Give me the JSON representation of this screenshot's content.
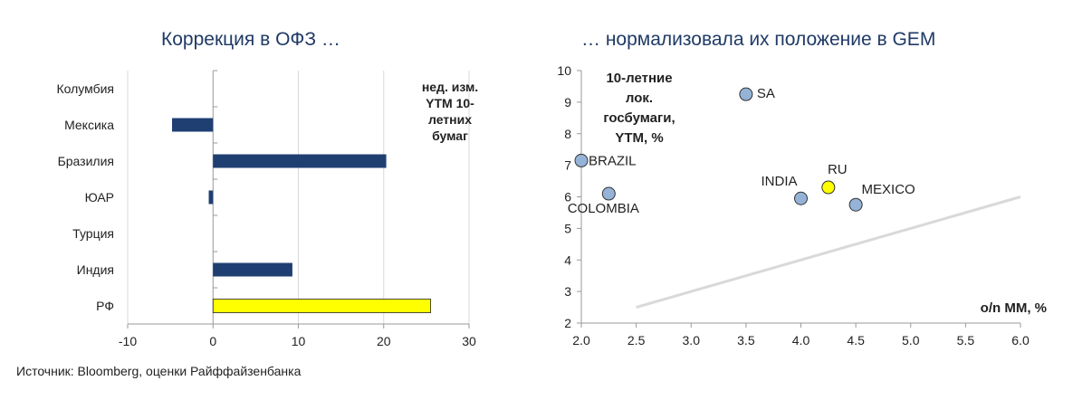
{
  "chart_data": [
    {
      "type": "bar",
      "orientation": "horizontal",
      "title": "Коррекция в ОФЗ …",
      "legend_text": "нед. изм. YTM 10-летних бумаг",
      "categories": [
        "Колумбия",
        "Мексика",
        "Бразилия",
        "ЮАР",
        "Турция",
        "Индия",
        "РФ"
      ],
      "values": [
        0,
        -4.8,
        20.3,
        -0.5,
        0,
        9.3,
        25.5
      ],
      "xlim": [
        -10,
        30
      ],
      "xticks": [
        "-10",
        "0",
        "10",
        "20",
        "30"
      ],
      "grid": true,
      "colors": {
        "bar": "#1F3F73",
        "highlight": "#FFFF00",
        "highlight_category": "РФ"
      }
    },
    {
      "type": "scatter",
      "title": "… нормализовала их положение в GEM",
      "xlabel": "o/n MM, %",
      "ylabel": "10-летние лок. госбумаги, YTM, %",
      "xlim": [
        2.0,
        6.0
      ],
      "ylim": [
        2,
        10
      ],
      "xticks": [
        "2.0",
        "2.5",
        "3.0",
        "3.5",
        "4.0",
        "4.5",
        "5.0",
        "5.5",
        "6.0"
      ],
      "yticks": [
        "2",
        "3",
        "4",
        "5",
        "6",
        "7",
        "8",
        "9",
        "10"
      ],
      "points": [
        {
          "label": "SA",
          "x": 3.5,
          "y": 9.25
        },
        {
          "label": "BRAZIL",
          "x": 2.0,
          "y": 7.15
        },
        {
          "label": "COLOMBIA",
          "x": 2.25,
          "y": 6.1
        },
        {
          "label": "INDIA",
          "x": 4.0,
          "y": 5.95
        },
        {
          "label": "RU",
          "x": 4.25,
          "y": 6.3
        },
        {
          "label": "MEXICO",
          "x": 4.5,
          "y": 5.75
        }
      ],
      "trendline": {
        "x": [
          2.5,
          6.0
        ],
        "y": [
          2.5,
          6.0
        ]
      },
      "colors": {
        "point": "#95B3D7",
        "highlight": "#FFFF00",
        "highlight_label": "RU",
        "trend": "#D9D9D9"
      }
    }
  ],
  "footer": {
    "source": "Источник: Bloomberg, оценки Райффайзенбанка"
  }
}
